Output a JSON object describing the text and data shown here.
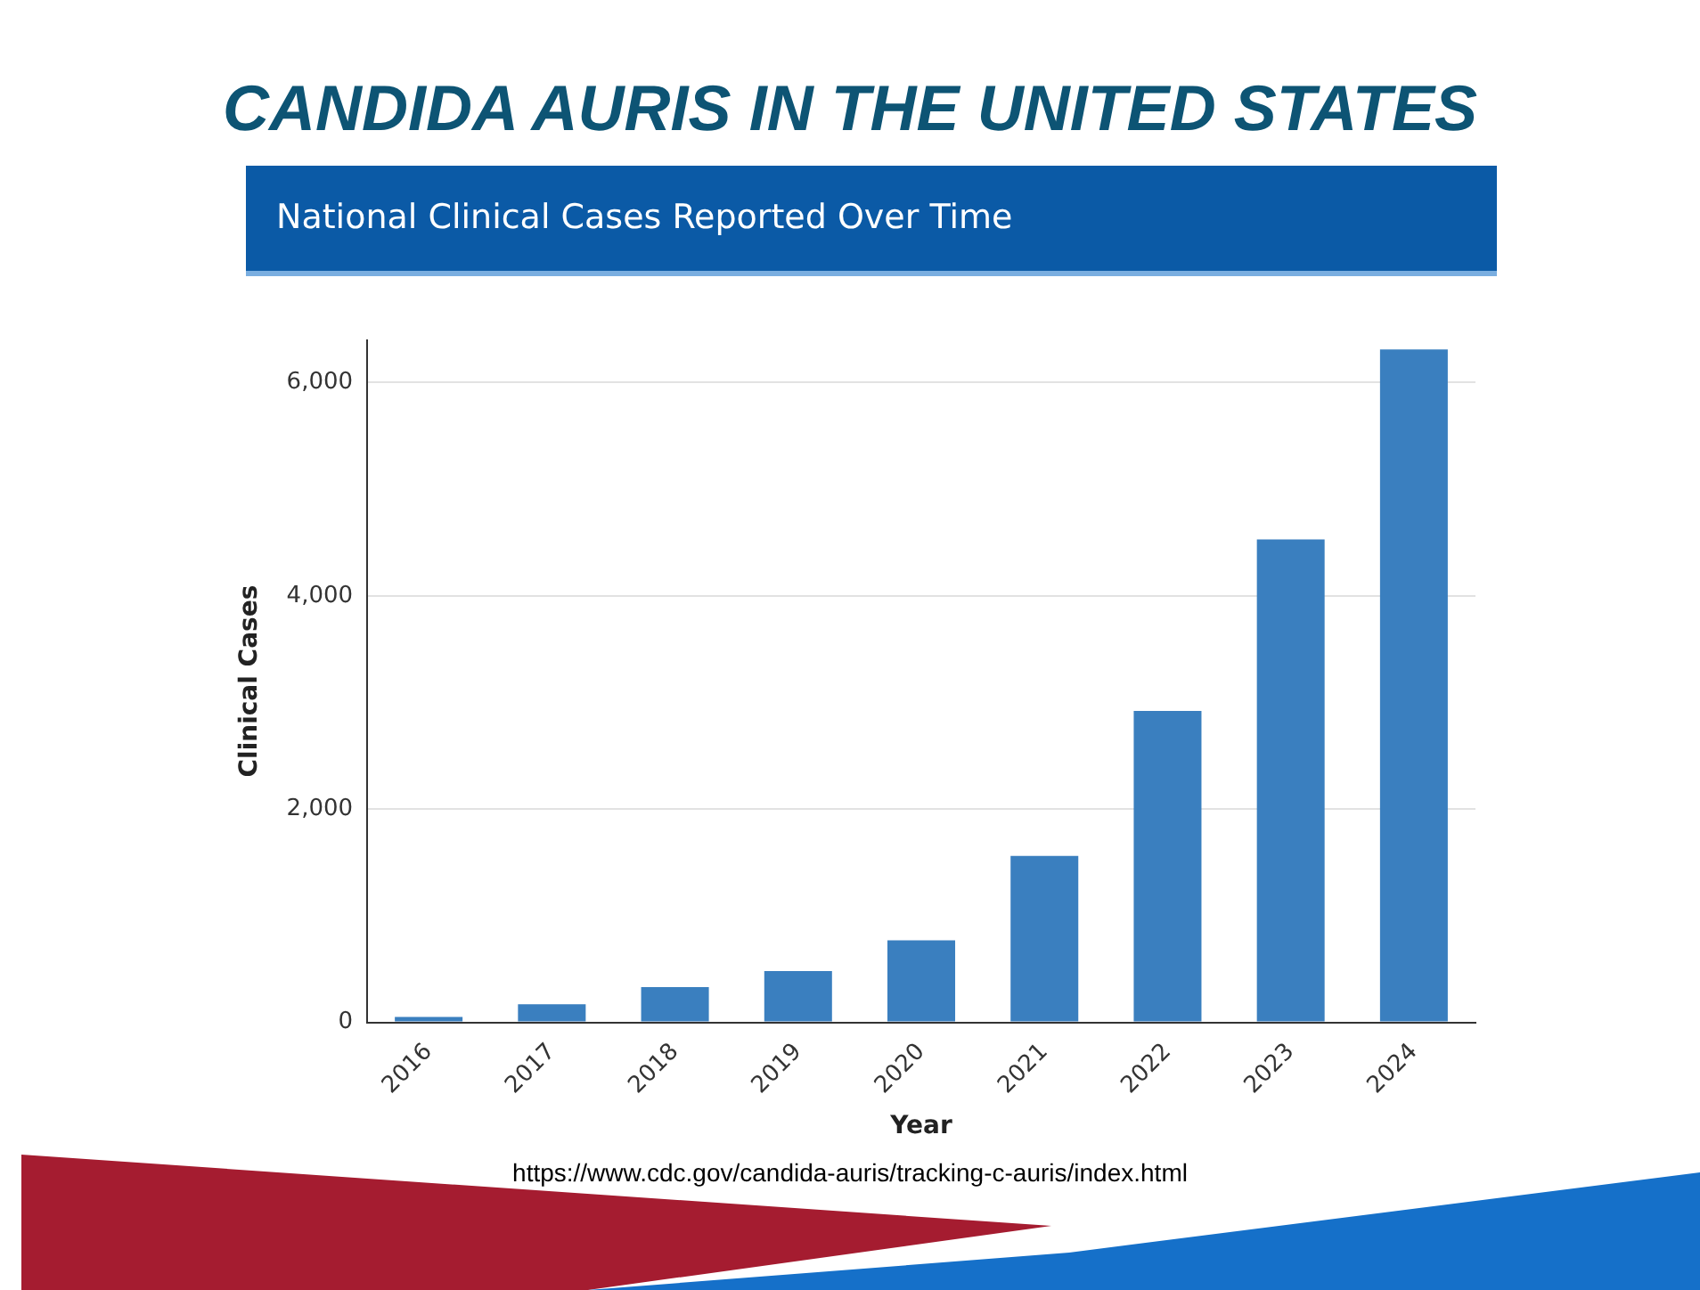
{
  "chart_data": {
    "type": "bar",
    "title": "CANDIDA AURIS IN THE UNITED STATES",
    "subtitle": "National Clinical Cases Reported Over Time",
    "xlabel": "Year",
    "ylabel": "Clinical Cases",
    "categories": [
      "2016",
      "2017",
      "2018",
      "2019",
      "2020",
      "2021",
      "2022",
      "2023",
      "2024"
    ],
    "values": [
      50,
      170,
      330,
      480,
      770,
      1560,
      2920,
      4530,
      6310
    ],
    "color": "#3a7fbf",
    "ylim": [
      0,
      6400
    ],
    "yticks": [
      0,
      {
        "value": 2000,
        "label": "2,000"
      },
      {
        "value": 4000,
        "label": "4,000"
      },
      {
        "value": 6000,
        "label": "6,000"
      }
    ],
    "grid": "y",
    "annotations": [
      "https://www.cdc.gov/candida-auris/tracking-c-auris/index.html"
    ]
  }
}
